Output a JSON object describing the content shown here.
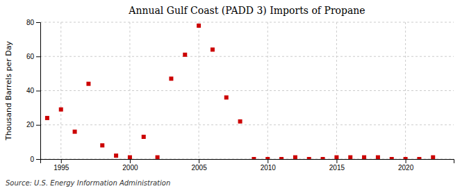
{
  "chart_data": {
    "type": "scatter",
    "title": "Annual Gulf Coast (PADD 3) Imports of Propane",
    "ylabel": "Thousand Barrels per Day",
    "source": "Source: U.S. Energy Information Administration",
    "x": [
      1994,
      1995,
      1996,
      1997,
      1998,
      1999,
      2000,
      2001,
      2002,
      2003,
      2004,
      2005,
      2006,
      2007,
      2008,
      2009,
      2010,
      2011,
      2012,
      2013,
      2014,
      2015,
      2016,
      2017,
      2018,
      2019,
      2020,
      2021,
      2022
    ],
    "values": [
      24,
      29,
      16,
      44,
      8,
      2,
      1,
      13,
      1,
      47,
      61,
      78,
      64,
      36,
      22,
      0,
      0,
      0,
      1,
      0,
      0,
      1,
      1,
      1,
      1,
      0,
      0,
      0,
      1
    ],
    "color": "#cc0000",
    "marker": "square",
    "xlim": [
      1993.5,
      2023.5
    ],
    "ylim": [
      0,
      80
    ],
    "xticks": [
      1995,
      2000,
      2005,
      2010,
      2015,
      2020
    ],
    "yticks": [
      0,
      20,
      40,
      60,
      80
    ],
    "grid": true
  }
}
